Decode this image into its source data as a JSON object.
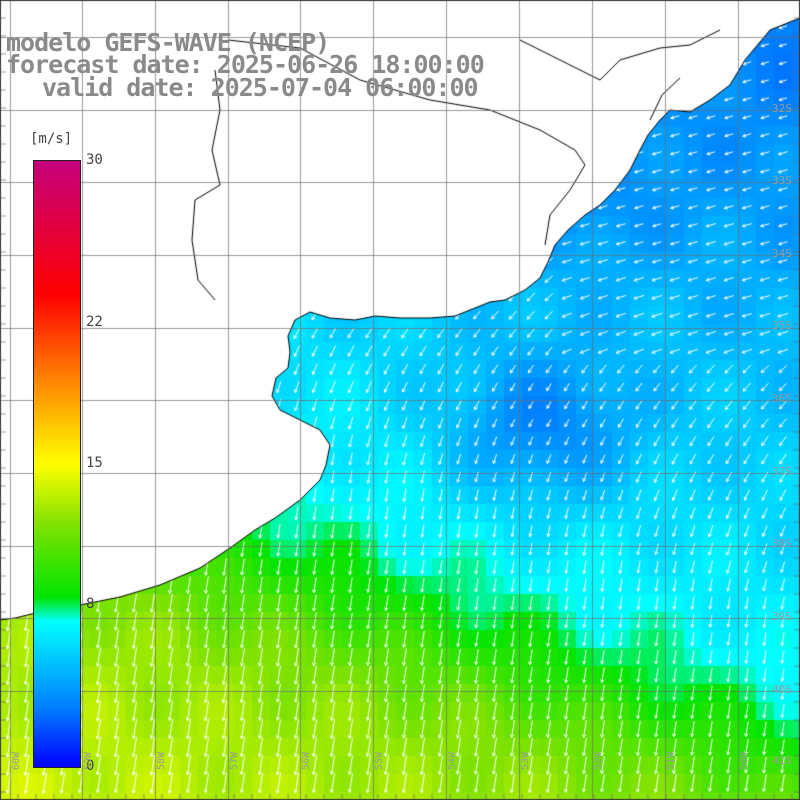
{
  "title": {
    "model": "modelo GEFS-WAVE (NCEP)",
    "forecast": "forecast date: 2025-06-26 18:00:00",
    "valid": "valid date: 2025-07-04 06:00:00"
  },
  "colorbar": {
    "unit": "[m/s]",
    "ticks": [
      "30",
      "22",
      "15",
      "8",
      "0"
    ],
    "tick_values": [
      30,
      22,
      15,
      8,
      0
    ],
    "range": [
      0,
      30
    ],
    "colors": {
      "30": "#c4007c",
      "25": "#ff0000",
      "20": "#ff7a00",
      "15": "#ffff00",
      "12": "#7fe200",
      "9": "#00e400",
      "8": "#00ffff",
      "4": "#0080ff",
      "0": "#0000ff"
    }
  },
  "map": {
    "field": "wind speed at 10 m with direction vectors",
    "lat_labels": [
      "32S",
      "33S",
      "34S",
      "35S",
      "36S",
      "37S",
      "38S",
      "39S",
      "40S",
      "41S"
    ],
    "lon_labels": [
      "60W",
      "59W",
      "58W",
      "57W",
      "56W",
      "55W",
      "54W",
      "53W",
      "52W",
      "51W",
      "50W"
    ],
    "land_color": "#ffffff",
    "grid_color": "#9a9a9a",
    "coast_color": "#000000",
    "arrow_color": "#ffffff",
    "wind_regimes": {
      "north_east": "NE winds ~4-7 m/s",
      "center": "light winds ~3-5 m/s",
      "south_west": "S/SSW winds ~9-11 m/s"
    }
  }
}
